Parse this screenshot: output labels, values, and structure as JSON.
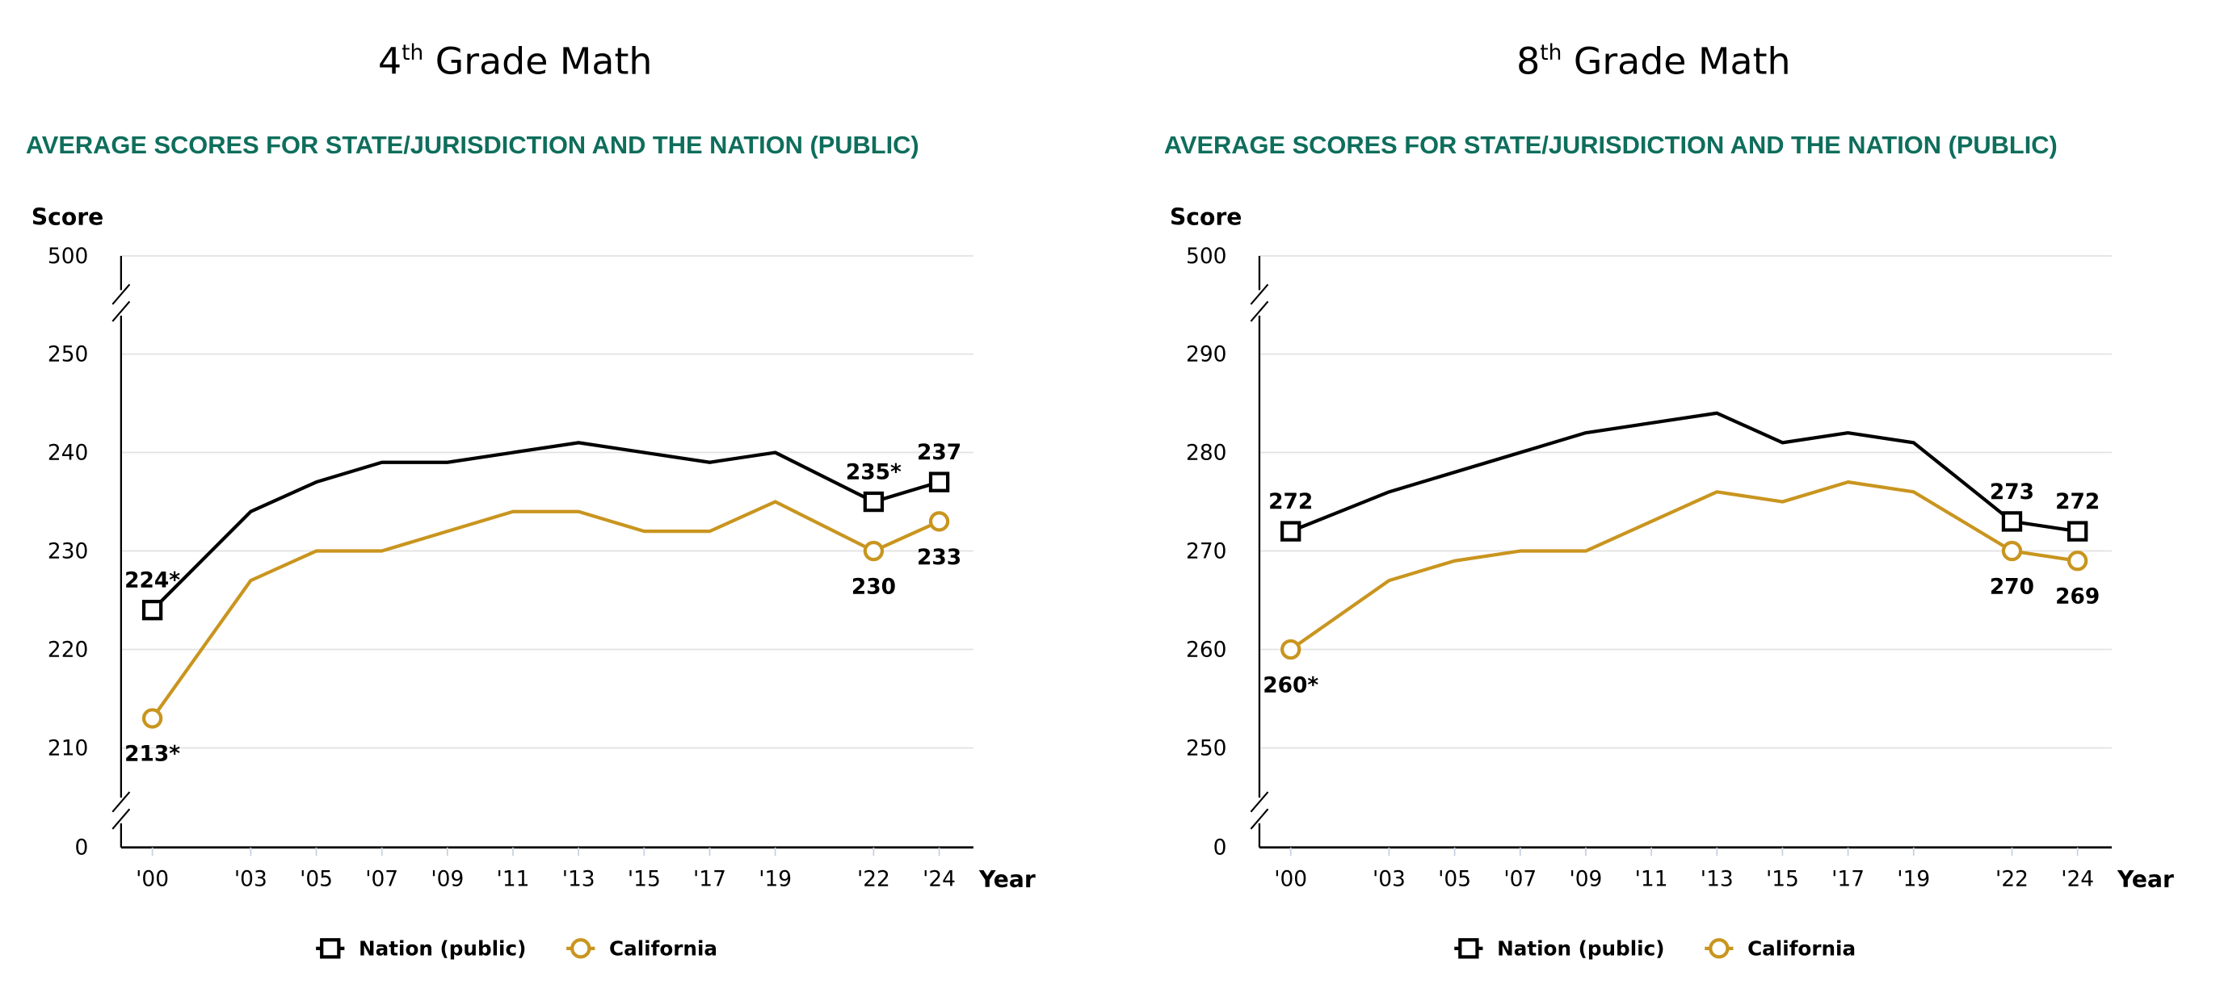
{
  "colors": {
    "nation": "#000000",
    "state": "#c9951f",
    "subtitle": "#0e6e5c",
    "grid": "#e2e2e2"
  },
  "chart_data": [
    {
      "type": "line",
      "title_main": "4",
      "title_sup": "th",
      "title_rest": " Grade Math",
      "subtitle": "AVERAGE SCORES FOR STATE/JURISDICTION AND THE NATION (PUBLIC)",
      "ylabel": "Score",
      "xlabel": "Year",
      "x": [
        2000,
        2003,
        2005,
        2007,
        2009,
        2011,
        2013,
        2015,
        2017,
        2019,
        2022,
        2024
      ],
      "x_tick_labels": [
        "'00",
        "'03",
        "'05",
        "'07",
        "'09",
        "'11",
        "'13",
        "'15",
        "'17",
        "'19",
        "'22",
        "'24"
      ],
      "y_ticks": [
        210,
        220,
        230,
        240,
        250
      ],
      "y_tick_labels": [
        "210",
        "220",
        "230",
        "240",
        "250"
      ],
      "y_break_top": "500",
      "y_break_bottom": "0",
      "ylim": [
        210,
        250
      ],
      "grid": true,
      "legend_position": "bottom-center",
      "series": [
        {
          "name": "Nation (public)",
          "key": "nation",
          "marker": "square",
          "values": [
            224,
            234,
            237,
            239,
            239,
            240,
            241,
            240,
            239,
            240,
            235,
            237
          ],
          "labels": {
            "0": "224*",
            "10": "235*",
            "11": "237"
          }
        },
        {
          "name": "California",
          "key": "state",
          "marker": "circle",
          "values": [
            213,
            227,
            230,
            230,
            232,
            234,
            234,
            232,
            232,
            235,
            230,
            233
          ],
          "labels": {
            "0": "213*",
            "10": "230",
            "11": "233"
          }
        }
      ]
    },
    {
      "type": "line",
      "title_main": "8",
      "title_sup": "th",
      "title_rest": " Grade Math",
      "subtitle": "AVERAGE SCORES FOR STATE/JURISDICTION AND THE NATION (PUBLIC)",
      "ylabel": "Score",
      "xlabel": "Year",
      "x": [
        2000,
        2003,
        2005,
        2007,
        2009,
        2011,
        2013,
        2015,
        2017,
        2019,
        2022,
        2024
      ],
      "x_tick_labels": [
        "'00",
        "'03",
        "'05",
        "'07",
        "'09",
        "'11",
        "'13",
        "'15",
        "'17",
        "'19",
        "'22",
        "'24"
      ],
      "y_ticks": [
        250,
        260,
        270,
        280,
        290
      ],
      "y_tick_labels": [
        "250",
        "260",
        "270",
        "280",
        "290"
      ],
      "y_break_top": "500",
      "y_break_bottom": "0",
      "ylim": [
        250,
        290
      ],
      "grid": true,
      "legend_position": "bottom-center",
      "series": [
        {
          "name": "Nation (public)",
          "key": "nation",
          "marker": "square",
          "values": [
            272,
            276,
            278,
            280,
            282,
            283,
            284,
            281,
            282,
            281,
            273,
            272
          ],
          "labels": {
            "0": "272",
            "10": "273",
            "11": "272"
          }
        },
        {
          "name": "California",
          "key": "state",
          "marker": "circle",
          "values": [
            260,
            267,
            269,
            270,
            270,
            273,
            276,
            275,
            277,
            276,
            270,
            269
          ],
          "labels": {
            "0": "260*",
            "10": "270",
            "11": "269"
          }
        }
      ]
    }
  ]
}
